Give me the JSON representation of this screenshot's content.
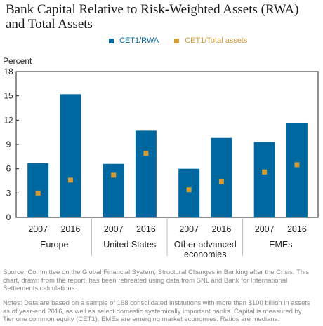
{
  "title": "Bank Capital Relative to Risk-Weighted Assets (RWA) and Total Assets",
  "colors": {
    "bar": "#0068a0",
    "marker": "#d49a34",
    "axis": "#222222",
    "separator": "#bfbfbf"
  },
  "chart_data": {
    "type": "bar",
    "ylabel": "Percent",
    "ylim": [
      0,
      18
    ],
    "yticks": [
      0,
      3,
      6,
      9,
      12,
      15,
      18
    ],
    "grid": false,
    "legend_position": "top",
    "groups": [
      {
        "label": "Europe",
        "years": [
          "2007",
          "2016"
        ]
      },
      {
        "label": "United States",
        "years": [
          "2007",
          "2016"
        ]
      },
      {
        "label": "Other advanced economies",
        "label_lines": [
          "Other advanced",
          "economies"
        ],
        "years": [
          "2007",
          "2016"
        ]
      },
      {
        "label": "EMEs",
        "years": [
          "2007",
          "2016"
        ]
      }
    ],
    "series": [
      {
        "name": "CET1/RWA",
        "kind": "bar",
        "values": [
          6.7,
          15.2,
          6.6,
          10.7,
          6.0,
          9.8,
          9.3,
          11.6
        ]
      },
      {
        "name": "CET1/Total assets",
        "kind": "marker",
        "values": [
          3.0,
          4.6,
          5.2,
          7.9,
          3.4,
          4.4,
          5.6,
          6.5
        ]
      }
    ]
  },
  "source": "Source: Committee on the Global Financial System, Structural Changes in Banking after the Crisis. This chart, drawn from the report, has been rebreated using data from SNL and Bank for International Settlements calculations.",
  "notes": "Notes: Data are based on a sample of 168 consolidated institutions with more than $100 billion in assets as of year-end 2016, as well as select domestic systemically important banks. Capital is measured by Tier one common equity (CET1). EMEs are emerging market economies. Ratios are medians."
}
